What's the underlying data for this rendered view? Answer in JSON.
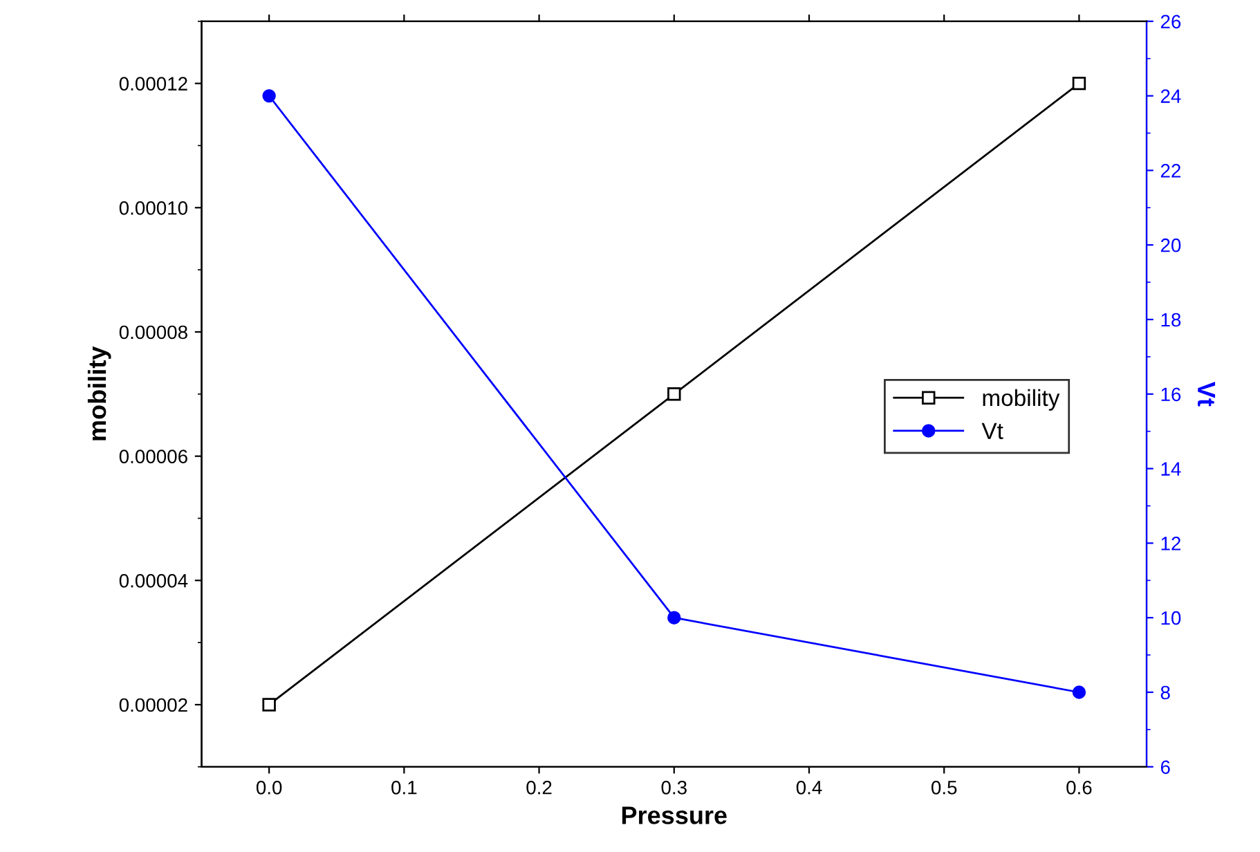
{
  "chart_data": {
    "type": "line",
    "xlabel": "Pressure",
    "ylabel": "mobility",
    "y2label": "Vt",
    "x": [
      0.0,
      0.3,
      0.6
    ],
    "xlim": [
      -0.05,
      0.65
    ],
    "xticks": [
      {
        "value": 0.0,
        "label": "0.0"
      },
      0.1,
      0.2,
      0.3,
      0.4,
      0.5,
      0.6
    ],
    "ylim": [
      1e-05,
      0.00013
    ],
    "yticks": [
      {
        "value": 2e-05,
        "label": "0.00002"
      },
      {
        "value": 4e-05,
        "label": "0.00004"
      },
      {
        "value": 6e-05,
        "label": "0.00006"
      },
      {
        "value": 8e-05,
        "label": "0.00008"
      },
      {
        "value": 0.0001,
        "label": "0.00010"
      },
      {
        "value": 0.00012,
        "label": "0.00012"
      }
    ],
    "y2lim": [
      6,
      26
    ],
    "y2ticks": [
      6,
      8,
      10,
      12,
      14,
      16,
      18,
      20,
      22,
      24,
      26
    ],
    "legend": "right",
    "grid": false,
    "line_style": "solid",
    "series": [
      {
        "name": "mobility",
        "color": "#000000",
        "marker": "square",
        "values": [
          2e-05,
          7e-05,
          0.00012
        ]
      },
      {
        "name": "Vt",
        "color": "#0000ff",
        "marker": "circle",
        "axis": "y2",
        "values": [
          24,
          10,
          8
        ]
      }
    ]
  }
}
